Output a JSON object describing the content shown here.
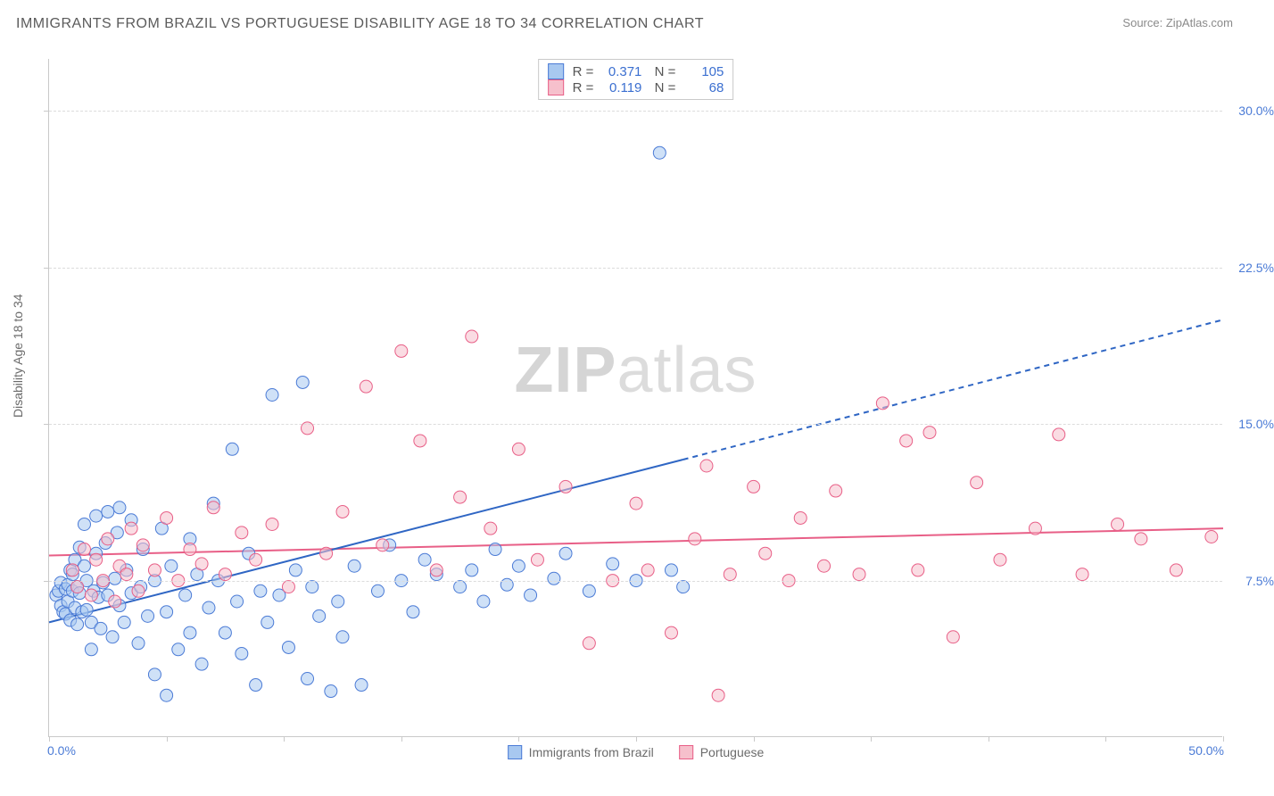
{
  "header": {
    "title": "IMMIGRANTS FROM BRAZIL VS PORTUGUESE DISABILITY AGE 18 TO 34 CORRELATION CHART",
    "source_label": "Source:",
    "source_value": "ZipAtlas.com"
  },
  "chart": {
    "type": "scatter",
    "ylabel": "Disability Age 18 to 34",
    "watermark": "ZIPatlas",
    "background_color": "#ffffff",
    "grid_color": "#dcdcdc",
    "axis_color": "#c9c9c9",
    "text_color": "#6b6b6b",
    "tick_label_color": "#4b7bd6",
    "xlim": [
      0,
      50
    ],
    "ylim": [
      0,
      32.5
    ],
    "xticks": [
      0,
      5,
      10,
      15,
      20,
      25,
      30,
      35,
      40,
      45,
      50
    ],
    "xtick_labels": {
      "0": "0.0%",
      "50": "50.0%"
    },
    "yticks_grid": [
      7.5,
      15.0,
      22.5,
      30.0
    ],
    "ytick_labels": [
      "7.5%",
      "15.0%",
      "22.5%",
      "30.0%"
    ],
    "marker_radius": 7,
    "marker_opacity": 0.55,
    "series": [
      {
        "name": "Immigrants from Brazil",
        "short": "brazil",
        "fill": "#a8c8f0",
        "stroke": "#4b7bd6",
        "line_color": "#2f66c4",
        "R": "0.371",
        "N": "105",
        "trend": {
          "x1": 0,
          "y1": 5.5,
          "x2": 27,
          "y2": 13.3,
          "dash_x2": 50,
          "dash_y2": 20.0,
          "width": 2
        },
        "points": [
          [
            0.3,
            6.8
          ],
          [
            0.4,
            7.0
          ],
          [
            0.5,
            6.3
          ],
          [
            0.5,
            7.4
          ],
          [
            0.6,
            6.0
          ],
          [
            0.7,
            7.1
          ],
          [
            0.7,
            5.9
          ],
          [
            0.8,
            7.3
          ],
          [
            0.8,
            6.5
          ],
          [
            0.9,
            8.0
          ],
          [
            0.9,
            5.6
          ],
          [
            1.0,
            7.0
          ],
          [
            1.0,
            7.8
          ],
          [
            1.1,
            6.2
          ],
          [
            1.1,
            8.5
          ],
          [
            1.2,
            5.4
          ],
          [
            1.2,
            7.2
          ],
          [
            1.3,
            6.9
          ],
          [
            1.3,
            9.1
          ],
          [
            1.4,
            6.0
          ],
          [
            1.5,
            8.2
          ],
          [
            1.5,
            10.2
          ],
          [
            1.6,
            7.5
          ],
          [
            1.6,
            6.1
          ],
          [
            1.8,
            4.2
          ],
          [
            1.8,
            5.5
          ],
          [
            1.9,
            7.0
          ],
          [
            2.0,
            8.8
          ],
          [
            2.0,
            10.6
          ],
          [
            2.1,
            6.7
          ],
          [
            2.2,
            5.2
          ],
          [
            2.3,
            7.4
          ],
          [
            2.4,
            9.3
          ],
          [
            2.5,
            10.8
          ],
          [
            2.5,
            6.8
          ],
          [
            2.7,
            4.8
          ],
          [
            2.8,
            7.6
          ],
          [
            2.9,
            9.8
          ],
          [
            3.0,
            11.0
          ],
          [
            3.0,
            6.3
          ],
          [
            3.2,
            5.5
          ],
          [
            3.3,
            8.0
          ],
          [
            3.5,
            10.4
          ],
          [
            3.5,
            6.9
          ],
          [
            3.8,
            4.5
          ],
          [
            3.9,
            7.2
          ],
          [
            4.0,
            9.0
          ],
          [
            4.2,
            5.8
          ],
          [
            4.5,
            3.0
          ],
          [
            4.5,
            7.5
          ],
          [
            4.8,
            10.0
          ],
          [
            5.0,
            2.0
          ],
          [
            5.0,
            6.0
          ],
          [
            5.2,
            8.2
          ],
          [
            5.5,
            4.2
          ],
          [
            5.8,
            6.8
          ],
          [
            6.0,
            9.5
          ],
          [
            6.0,
            5.0
          ],
          [
            6.3,
            7.8
          ],
          [
            6.5,
            3.5
          ],
          [
            6.8,
            6.2
          ],
          [
            7.0,
            11.2
          ],
          [
            7.2,
            7.5
          ],
          [
            7.5,
            5.0
          ],
          [
            7.8,
            13.8
          ],
          [
            8.0,
            6.5
          ],
          [
            8.2,
            4.0
          ],
          [
            8.5,
            8.8
          ],
          [
            8.8,
            2.5
          ],
          [
            9.0,
            7.0
          ],
          [
            9.3,
            5.5
          ],
          [
            9.5,
            16.4
          ],
          [
            9.8,
            6.8
          ],
          [
            10.2,
            4.3
          ],
          [
            10.5,
            8.0
          ],
          [
            10.8,
            17.0
          ],
          [
            11.0,
            2.8
          ],
          [
            11.2,
            7.2
          ],
          [
            11.5,
            5.8
          ],
          [
            12.0,
            2.2
          ],
          [
            12.3,
            6.5
          ],
          [
            12.5,
            4.8
          ],
          [
            13.0,
            8.2
          ],
          [
            13.3,
            2.5
          ],
          [
            14.0,
            7.0
          ],
          [
            14.5,
            9.2
          ],
          [
            15.0,
            7.5
          ],
          [
            15.5,
            6.0
          ],
          [
            16.0,
            8.5
          ],
          [
            16.5,
            7.8
          ],
          [
            17.5,
            7.2
          ],
          [
            18.0,
            8.0
          ],
          [
            18.5,
            6.5
          ],
          [
            19.0,
            9.0
          ],
          [
            19.5,
            7.3
          ],
          [
            20.0,
            8.2
          ],
          [
            20.5,
            6.8
          ],
          [
            21.5,
            7.6
          ],
          [
            22.0,
            8.8
          ],
          [
            23.0,
            7.0
          ],
          [
            24.0,
            8.3
          ],
          [
            25.0,
            7.5
          ],
          [
            26.0,
            28.0
          ],
          [
            26.5,
            8.0
          ],
          [
            27.0,
            7.2
          ]
        ]
      },
      {
        "name": "Portuguese",
        "short": "portuguese",
        "fill": "#f6c0cc",
        "stroke": "#e85f87",
        "line_color": "#e85f87",
        "R": "0.119",
        "N": "68",
        "trend": {
          "x1": 0,
          "y1": 8.7,
          "x2": 50,
          "y2": 10.0,
          "width": 2
        },
        "points": [
          [
            1.0,
            8.0
          ],
          [
            1.2,
            7.2
          ],
          [
            1.5,
            9.0
          ],
          [
            1.8,
            6.8
          ],
          [
            2.0,
            8.5
          ],
          [
            2.3,
            7.5
          ],
          [
            2.5,
            9.5
          ],
          [
            2.8,
            6.5
          ],
          [
            3.0,
            8.2
          ],
          [
            3.3,
            7.8
          ],
          [
            3.5,
            10.0
          ],
          [
            3.8,
            7.0
          ],
          [
            4.0,
            9.2
          ],
          [
            4.5,
            8.0
          ],
          [
            5.0,
            10.5
          ],
          [
            5.5,
            7.5
          ],
          [
            6.0,
            9.0
          ],
          [
            6.5,
            8.3
          ],
          [
            7.0,
            11.0
          ],
          [
            7.5,
            7.8
          ],
          [
            8.2,
            9.8
          ],
          [
            8.8,
            8.5
          ],
          [
            9.5,
            10.2
          ],
          [
            10.2,
            7.2
          ],
          [
            11.0,
            14.8
          ],
          [
            11.8,
            8.8
          ],
          [
            12.5,
            10.8
          ],
          [
            13.5,
            16.8
          ],
          [
            14.2,
            9.2
          ],
          [
            15.0,
            18.5
          ],
          [
            15.8,
            14.2
          ],
          [
            16.5,
            8.0
          ],
          [
            17.5,
            11.5
          ],
          [
            18.0,
            19.2
          ],
          [
            18.8,
            10.0
          ],
          [
            20.0,
            13.8
          ],
          [
            20.8,
            8.5
          ],
          [
            22.0,
            12.0
          ],
          [
            23.0,
            4.5
          ],
          [
            24.0,
            7.5
          ],
          [
            25.0,
            11.2
          ],
          [
            25.5,
            8.0
          ],
          [
            26.5,
            5.0
          ],
          [
            27.5,
            9.5
          ],
          [
            28.0,
            13.0
          ],
          [
            28.5,
            2.0
          ],
          [
            29.0,
            7.8
          ],
          [
            30.0,
            12.0
          ],
          [
            30.5,
            8.8
          ],
          [
            31.5,
            7.5
          ],
          [
            32.0,
            10.5
          ],
          [
            33.0,
            8.2
          ],
          [
            33.5,
            11.8
          ],
          [
            34.5,
            7.8
          ],
          [
            35.5,
            16.0
          ],
          [
            36.5,
            14.2
          ],
          [
            37.0,
            8.0
          ],
          [
            37.5,
            14.6
          ],
          [
            38.5,
            4.8
          ],
          [
            39.5,
            12.2
          ],
          [
            40.5,
            8.5
          ],
          [
            42.0,
            10.0
          ],
          [
            43.0,
            14.5
          ],
          [
            44.0,
            7.8
          ],
          [
            45.5,
            10.2
          ],
          [
            46.5,
            9.5
          ],
          [
            48.0,
            8.0
          ],
          [
            49.5,
            9.6
          ]
        ]
      }
    ],
    "bottom_legend": [
      {
        "label": "Immigrants from Brazil",
        "fill": "#a8c8f0",
        "stroke": "#4b7bd6"
      },
      {
        "label": "Portuguese",
        "fill": "#f6c0cc",
        "stroke": "#e85f87"
      }
    ]
  }
}
